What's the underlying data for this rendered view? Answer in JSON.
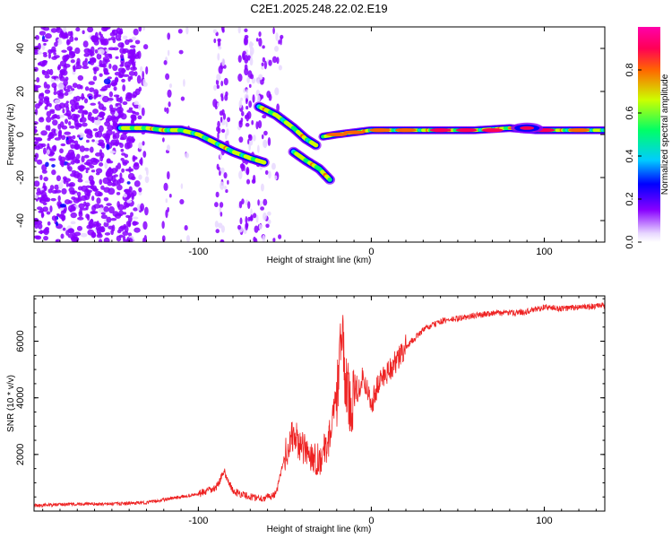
{
  "title": "C2E1.2025.248.22.02.E19",
  "chart_data": [
    {
      "type": "heatmap",
      "name": "spectrogram",
      "title": "C2E1.2025.248.22.02.E19",
      "xlabel": "Height of straight line (km)",
      "ylabel": "Frequency (Hz)",
      "xlim": [
        -195,
        135
      ],
      "ylim": [
        -50,
        50
      ],
      "xticks": [
        -100,
        0,
        100
      ],
      "yticks": [
        -40,
        -20,
        0,
        20,
        40
      ],
      "xtick_labels": [
        "-100",
        "0",
        "100"
      ],
      "ytick_labels": [
        "-40",
        "-20",
        "0",
        "20",
        "40"
      ],
      "colorbar": {
        "label": "Normalized spectral amplitude",
        "range": [
          0,
          1
        ],
        "ticks": [
          0.0,
          0.2,
          0.4,
          0.6,
          0.8
        ],
        "tick_labels": [
          "0.0",
          "0.2",
          "0.4",
          "0.6",
          "0.8"
        ],
        "colors": [
          "#e8d8ff",
          "#8800ff",
          "#0000ff",
          "#00ccff",
          "#00ff66",
          "#ccff00",
          "#ff6600",
          "#ff0055",
          "#ff00aa"
        ]
      },
      "features": [
        {
          "name": "main-branch",
          "points": [
            [
              -145,
              3
            ],
            [
              -130,
              3
            ],
            [
              -120,
              2
            ],
            [
              -110,
              2
            ],
            [
              -100,
              0
            ],
            [
              -90,
              -4
            ],
            [
              -80,
              -8
            ],
            [
              -70,
              -11
            ],
            [
              -62,
              -13
            ]
          ]
        },
        {
          "name": "upper-branch",
          "points": [
            [
              -65,
              13
            ],
            [
              -55,
              9
            ],
            [
              -45,
              3
            ],
            [
              -38,
              -2
            ],
            [
              -32,
              -5
            ]
          ]
        },
        {
          "name": "lower-branch",
          "points": [
            [
              -45,
              -8
            ],
            [
              -38,
              -12
            ],
            [
              -30,
              -16
            ],
            [
              -24,
              -21
            ]
          ]
        },
        {
          "name": "flat-branch",
          "points": [
            [
              -28,
              -1
            ],
            [
              -20,
              0
            ],
            [
              -10,
              1
            ],
            [
              0,
              2
            ],
            [
              10,
              2
            ],
            [
              30,
              2
            ],
            [
              60,
              2
            ],
            [
              80,
              3
            ],
            [
              95,
              2
            ],
            [
              110,
              2
            ],
            [
              135,
              2
            ]
          ]
        }
      ]
    },
    {
      "type": "line",
      "name": "snr",
      "xlabel": "Height of straight line (km)",
      "ylabel": "SNR (10 * v/v)",
      "xlim": [
        -195,
        135
      ],
      "ylim": [
        0,
        7600
      ],
      "xticks": [
        -100,
        0,
        100
      ],
      "yticks": [
        2000,
        4000,
        6000
      ],
      "xtick_labels": [
        "-100",
        "0",
        "100"
      ],
      "ytick_labels": [
        "2000",
        "4000",
        "6000"
      ],
      "series": [
        {
          "name": "SNR",
          "color": "#ee2222",
          "x": [
            -195,
            -170,
            -150,
            -130,
            -110,
            -100,
            -90,
            -85,
            -80,
            -70,
            -62,
            -55,
            -50,
            -45,
            -40,
            -35,
            -30,
            -25,
            -20,
            -17,
            -15,
            -12,
            -8,
            -5,
            0,
            5,
            10,
            15,
            20,
            30,
            40,
            50,
            60,
            70,
            80,
            90,
            100,
            110,
            120,
            135
          ],
          "values": [
            200,
            250,
            250,
            300,
            500,
            600,
            800,
            1400,
            700,
            500,
            450,
            600,
            2000,
            2700,
            2200,
            2000,
            1800,
            2400,
            4000,
            6400,
            4500,
            3800,
            4200,
            4800,
            3800,
            4600,
            5000,
            5300,
            5800,
            6400,
            6700,
            6800,
            6900,
            7000,
            7000,
            7050,
            7200,
            7150,
            7200,
            7250
          ]
        }
      ]
    }
  ]
}
